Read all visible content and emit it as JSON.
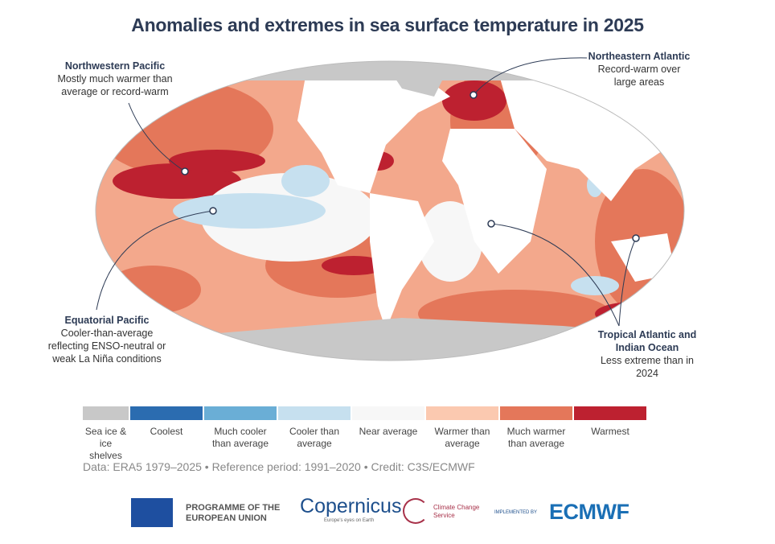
{
  "title": "Anomalies and extremes in sea surface temperature in 2025",
  "callouts": [
    {
      "title": "Northwestern Pacific",
      "text": "Mostly much warmer than average or record-warm"
    },
    {
      "title": "Northeastern Atlantic",
      "text": "Record-warm over large areas"
    },
    {
      "title": "Equatorial Pacific",
      "text": "Cooler-than-average reflecting ENSO-neutral or weak La Niña conditions"
    },
    {
      "title": "Tropical Atlantic and Indian Ocean",
      "text": "Less extreme than in 2024"
    }
  ],
  "legend": [
    {
      "label": "Sea ice & ice shelves",
      "color": "#c8c8c8"
    },
    {
      "label": "Coolest",
      "color": "#2b6cb0"
    },
    {
      "label": "Much cooler than average",
      "color": "#6aaed6"
    },
    {
      "label": "Cooler than average",
      "color": "#c6e0ef"
    },
    {
      "label": "Near average",
      "color": "#f7f7f7"
    },
    {
      "label": "Warmer than average",
      "color": "#fbc9b0"
    },
    {
      "label": "Much warmer than average",
      "color": "#e4775a"
    },
    {
      "label": "Warmest",
      "color": "#bd2130"
    }
  ],
  "credit": "Data: ERA5 1979–2025 • Reference period: 1991–2020 • Credit: C3S/ECMWF",
  "logos": {
    "eu": "PROGRAMME OF THE EUROPEAN UNION",
    "copernicus": "opernicus",
    "copernicus_tag": "Europe's eyes on Earth",
    "c3s": "Climate Change Service",
    "implemented": "IMPLEMENTED BY",
    "ecmwf": "ECMWF"
  }
}
